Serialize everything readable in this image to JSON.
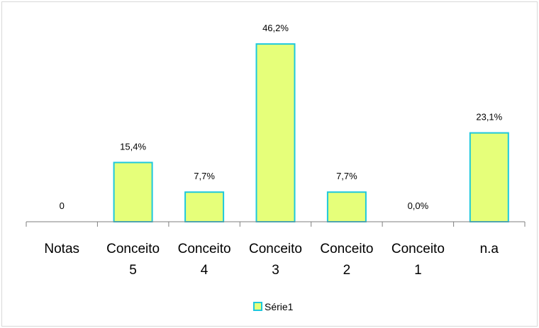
{
  "chart_data": {
    "type": "bar",
    "categories": [
      [
        "Notas"
      ],
      [
        "Conceito",
        "5"
      ],
      [
        "Conceito",
        "4"
      ],
      [
        "Conceito",
        "3"
      ],
      [
        "Conceito",
        "2"
      ],
      [
        "Conceito",
        "1"
      ],
      [
        "n.a"
      ]
    ],
    "series": [
      {
        "name": "Série1",
        "values": [
          0,
          15.4,
          7.7,
          46.2,
          7.7,
          0.0,
          23.1
        ],
        "data_labels": [
          "0",
          "15,4%",
          "7,7%",
          "46,2%",
          "7,7%",
          "0,0%",
          "23,1%"
        ]
      }
    ],
    "ylim": [
      0,
      50
    ],
    "grid": false,
    "legend": "bottom",
    "bar_fill": "#e6ff7a",
    "bar_stroke": "#1ec8dc",
    "axis_color": "#7f7f7f"
  }
}
